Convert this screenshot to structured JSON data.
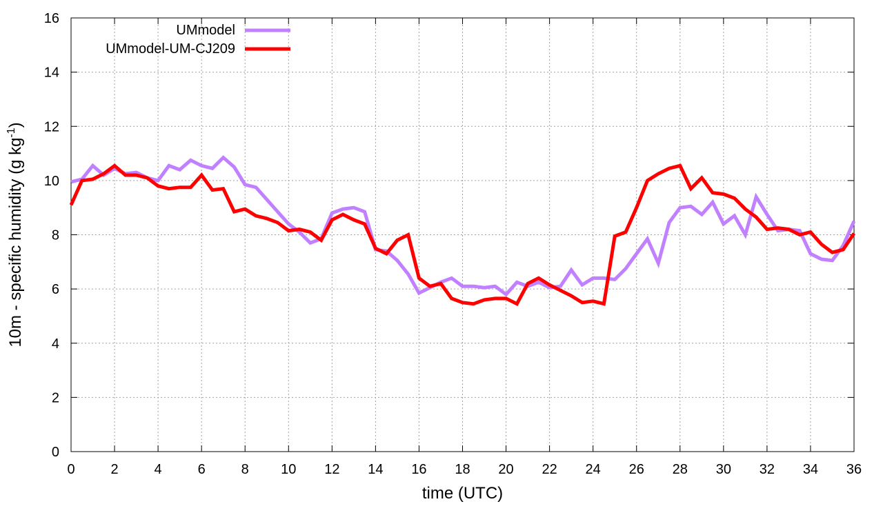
{
  "chart_data": {
    "type": "line",
    "xlabel": "time (UTC)",
    "ylabel": {
      "main": "10m - specific humidity (g kg",
      "superscript": "-1",
      "close": ")"
    },
    "xlim": [
      0,
      36
    ],
    "ylim": [
      0,
      16
    ],
    "xticks": [
      0,
      2,
      4,
      6,
      8,
      10,
      12,
      14,
      16,
      18,
      20,
      22,
      24,
      26,
      28,
      30,
      32,
      34,
      36
    ],
    "yticks": [
      0,
      2,
      4,
      6,
      8,
      10,
      12,
      14,
      16
    ],
    "grid": true,
    "legend_position": "top-left",
    "series": [
      {
        "name": "UMmodel",
        "color": "#c080ff",
        "x": [
          0,
          0.5,
          1,
          1.5,
          2,
          2.5,
          3,
          3.5,
          4,
          4.5,
          5,
          5.5,
          6,
          6.5,
          7,
          7.5,
          8,
          8.5,
          9,
          9.5,
          10,
          10.5,
          11,
          11.5,
          12,
          12.5,
          13,
          13.5,
          14,
          14.5,
          15,
          15.5,
          16,
          16.5,
          17,
          17.5,
          18,
          18.5,
          19,
          19.5,
          20,
          20.5,
          21,
          21.5,
          22,
          22.5,
          23,
          23.5,
          24,
          24.5,
          25,
          25.5,
          26,
          26.5,
          27,
          27.5,
          28,
          28.5,
          29,
          29.5,
          30,
          30.5,
          31,
          31.5,
          32,
          32.5,
          33,
          33.5,
          34,
          34.5,
          35,
          35.5,
          36
        ],
        "y": [
          9.95,
          10.05,
          10.55,
          10.2,
          10.45,
          10.25,
          10.3,
          10.1,
          10.0,
          10.55,
          10.4,
          10.75,
          10.55,
          10.45,
          10.85,
          10.5,
          9.85,
          9.75,
          9.3,
          8.85,
          8.4,
          8.1,
          7.7,
          7.85,
          8.8,
          8.95,
          9.0,
          8.85,
          7.45,
          7.4,
          7.05,
          6.55,
          5.85,
          6.05,
          6.25,
          6.4,
          6.1,
          6.1,
          6.05,
          6.1,
          5.8,
          6.25,
          6.1,
          6.25,
          6.05,
          6.1,
          6.7,
          6.15,
          6.4,
          6.4,
          6.35,
          6.75,
          7.3,
          7.85,
          6.95,
          8.45,
          9.0,
          9.05,
          8.75,
          9.2,
          8.4,
          8.7,
          8.0,
          9.4,
          8.75,
          8.15,
          8.2,
          8.15,
          7.3,
          7.1,
          7.05,
          7.6,
          8.5
        ]
      },
      {
        "name": "UMmodel-UM-CJ209",
        "color": "#ff0000",
        "x": [
          0,
          0.5,
          1,
          1.5,
          2,
          2.5,
          3,
          3.5,
          4,
          4.5,
          5,
          5.5,
          6,
          6.5,
          7,
          7.5,
          8,
          8.5,
          9,
          9.5,
          10,
          10.5,
          11,
          11.5,
          12,
          12.5,
          13,
          13.5,
          14,
          14.5,
          15,
          15.5,
          16,
          16.5,
          17,
          17.5,
          18,
          18.5,
          19,
          19.5,
          20,
          20.5,
          21,
          21.5,
          22,
          22.5,
          23,
          23.5,
          24,
          24.5,
          25,
          25.5,
          26,
          26.5,
          27,
          27.5,
          28,
          28.5,
          29,
          29.5,
          30,
          30.5,
          31,
          31.5,
          32,
          32.5,
          33,
          33.5,
          34,
          34.5,
          35,
          35.5,
          36
        ],
        "y": [
          9.1,
          10.0,
          10.05,
          10.25,
          10.55,
          10.2,
          10.2,
          10.1,
          9.8,
          9.7,
          9.75,
          9.75,
          10.2,
          9.65,
          9.7,
          8.85,
          8.95,
          8.7,
          8.6,
          8.45,
          8.15,
          8.2,
          8.1,
          7.8,
          8.55,
          8.75,
          8.55,
          8.4,
          7.5,
          7.3,
          7.8,
          8.0,
          6.4,
          6.1,
          6.2,
          5.65,
          5.5,
          5.45,
          5.6,
          5.65,
          5.65,
          5.45,
          6.2,
          6.4,
          6.15,
          5.95,
          5.75,
          5.5,
          5.55,
          5.45,
          7.95,
          8.1,
          9.0,
          10.0,
          10.25,
          10.45,
          10.55,
          9.7,
          10.1,
          9.55,
          9.5,
          9.35,
          8.95,
          8.65,
          8.2,
          8.25,
          8.2,
          8.0,
          8.1,
          7.65,
          7.35,
          7.45,
          8.05
        ]
      }
    ]
  }
}
